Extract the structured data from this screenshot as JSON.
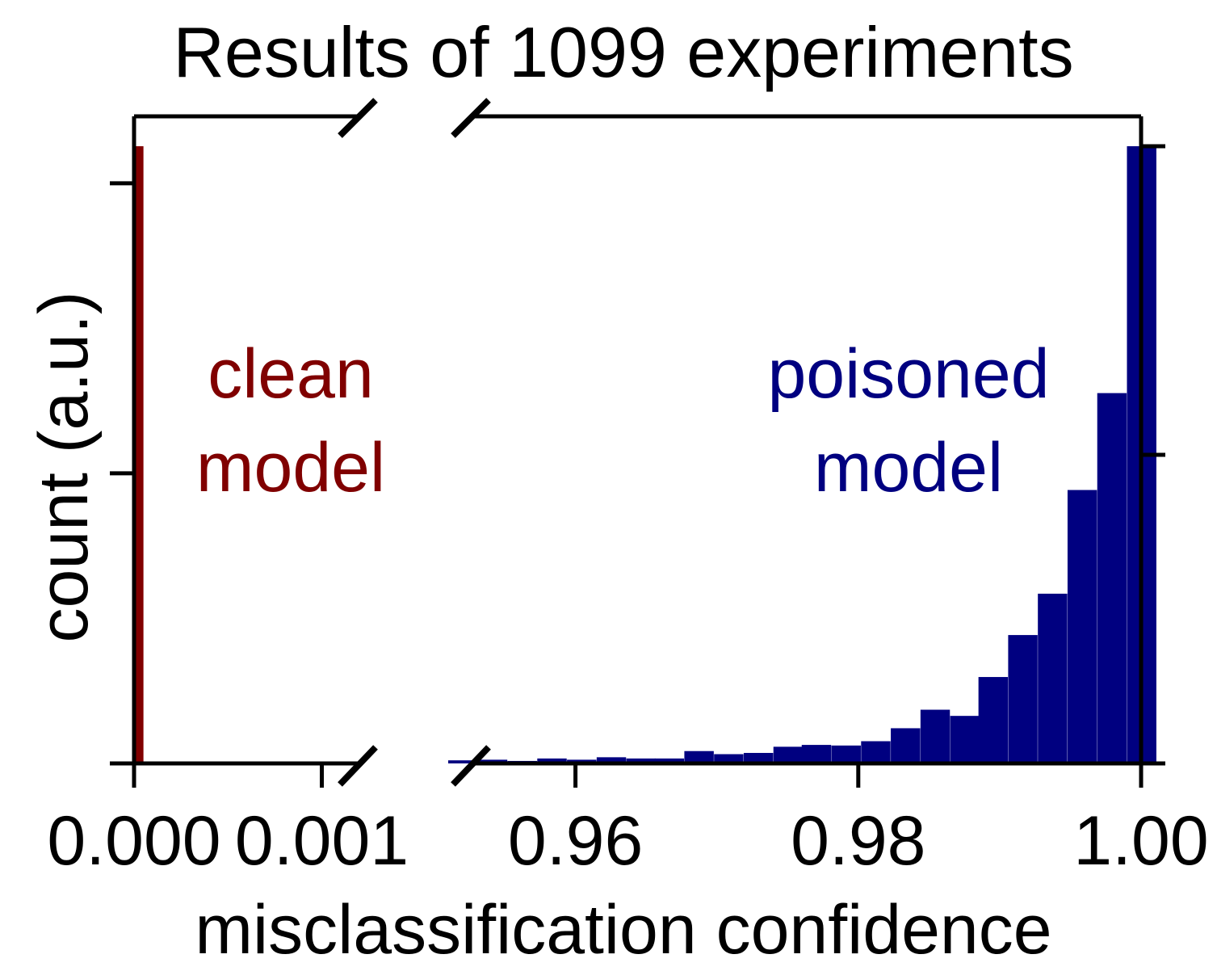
{
  "chart_data": {
    "type": "bar",
    "title": "Results of 1099 experiments",
    "xlabel": "misclassification confidence",
    "ylabel": "count (a.u.)",
    "x_axis_broken": true,
    "left_segment": {
      "xlim": [
        0.0,
        0.0012
      ],
      "xticks": [
        0.0,
        0.001
      ],
      "xtick_labels": [
        "0.000",
        "0.001"
      ],
      "bin_width": 5e-05
    },
    "right_segment": {
      "xlim": [
        0.951,
        1.0
      ],
      "xticks": [
        0.96,
        0.98,
        1.0
      ],
      "xtick_labels": [
        "0.96",
        "0.98",
        "1.00"
      ],
      "bin_width": 0.00208
    },
    "ylim": [
      0,
      1.0
    ],
    "series": [
      {
        "name": "clean model",
        "label_lines": [
          "clean",
          "model"
        ],
        "color": "#800000",
        "segment": "left",
        "bin_starts": [
          0.0
        ],
        "values": [
          1.0
        ]
      },
      {
        "name": "poisoned model",
        "label_lines": [
          "poisoned",
          "model"
        ],
        "color": "#000080",
        "segment": "right",
        "bin_starts": [
          0.951,
          0.9531,
          0.9552,
          0.9573,
          0.9594,
          0.9615,
          0.9636,
          0.9656,
          0.9677,
          0.9698,
          0.9719,
          0.974,
          0.976,
          0.9781,
          0.9802,
          0.9823,
          0.9844,
          0.9865,
          0.9885,
          0.9906,
          0.9927,
          0.9948,
          0.9969,
          0.999
        ],
        "values": [
          0.005,
          0.006,
          0.004,
          0.008,
          0.006,
          0.01,
          0.008,
          0.008,
          0.02,
          0.015,
          0.017,
          0.027,
          0.03,
          0.029,
          0.036,
          0.057,
          0.087,
          0.077,
          0.14,
          0.208,
          0.275,
          0.443,
          0.6,
          1.0
        ]
      }
    ],
    "y_ticks_left": [
      0.0,
      0.47,
      0.94
    ],
    "y_ticks_right": [
      0.0,
      0.5,
      1.0
    ],
    "grid": false,
    "legend": "none"
  }
}
